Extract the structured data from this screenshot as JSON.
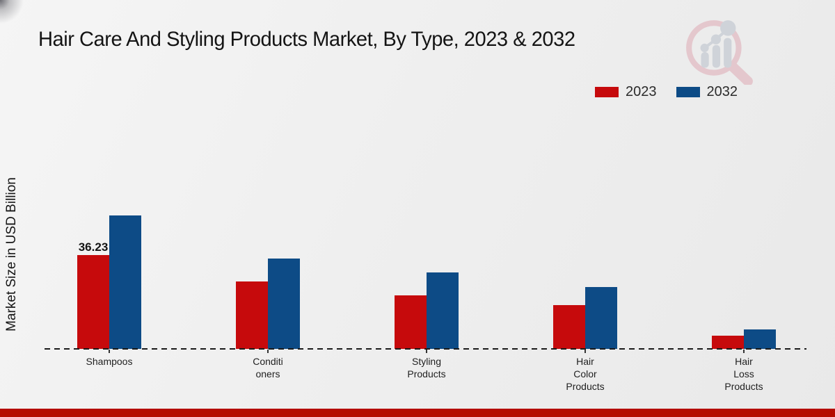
{
  "page": {
    "footer_color": "#b50c00"
  },
  "chart_data": {
    "type": "bar",
    "title": "Hair Care And Styling Products Market, By Type, 2023 & 2032",
    "xlabel": "",
    "ylabel": "Market Size in USD Billion",
    "categories": [
      "Shampoos",
      "Conditioners",
      "Styling Products",
      "Hair Color Products",
      "Hair Loss Products"
    ],
    "category_label_lines": [
      [
        "Shampoos"
      ],
      [
        "Conditi",
        "oners"
      ],
      [
        "Styling",
        "Products"
      ],
      [
        "Hair",
        "Color",
        "Products"
      ],
      [
        "Hair",
        "Loss",
        "Products"
      ]
    ],
    "series": [
      {
        "name": "2023",
        "color": "#c60a0c",
        "values": [
          36.23,
          26.0,
          20.7,
          16.9,
          5.1
        ]
      },
      {
        "name": "2032",
        "color": "#0d4b86",
        "values": [
          51.4,
          34.9,
          29.5,
          23.9,
          7.5
        ]
      }
    ],
    "data_labels": [
      {
        "series_index": 0,
        "category_index": 0,
        "text": "36.23"
      }
    ],
    "ylim": [
      0,
      55
    ],
    "grid": false,
    "legend_position": "top-right",
    "baseline_style": "dashed"
  }
}
